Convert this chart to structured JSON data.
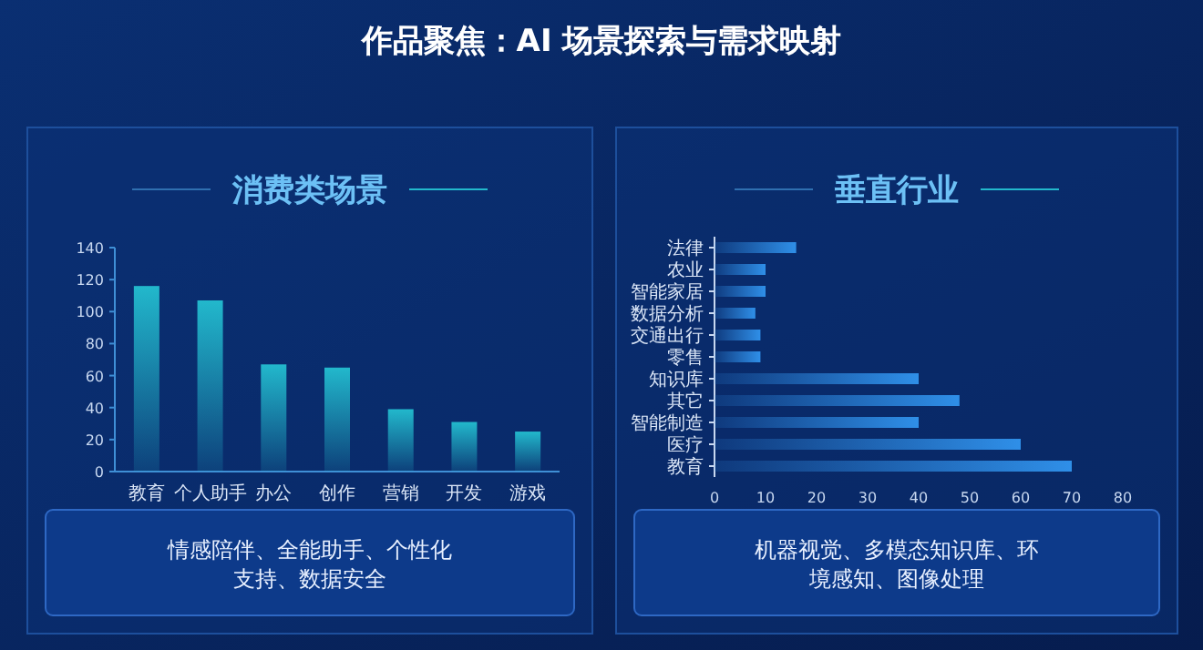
{
  "chart_data": [
    {
      "type": "other",
      "title": "作品聚焦：AI 场景探索与需求映射"
    },
    {
      "type": "bar",
      "title": "消费类场景",
      "categories": [
        "教育",
        "个人助手",
        "办公",
        "创作",
        "营销",
        "开发",
        "游戏"
      ],
      "values": [
        116,
        107,
        67,
        65,
        39,
        31,
        25
      ],
      "color": "#22b8cc",
      "ylim": [
        0,
        140
      ],
      "yticks": [
        0,
        20,
        40,
        60,
        80,
        100,
        120,
        140
      ],
      "annotations": [
        "情感陪伴、全能助手、个性化支持、数据安全"
      ]
    },
    {
      "type": "bar",
      "orientation": "horizontal",
      "title": "垂直行业",
      "categories": [
        "法律",
        "农业",
        "智能家居",
        "数据分析",
        "交通出行",
        "零售",
        "知识库",
        "其它",
        "智能制造",
        "医疗",
        "教育"
      ],
      "values": [
        16,
        10,
        10,
        8,
        9,
        9,
        40,
        48,
        40,
        60,
        70
      ],
      "color": "#2f8fe8",
      "xlim": [
        0,
        80
      ],
      "xticks": [
        0,
        10,
        20,
        30,
        40,
        50,
        60,
        70,
        80
      ],
      "annotations": [
        "机器视觉、多模态知识库、环境感知、图像处理"
      ]
    }
  ]
}
